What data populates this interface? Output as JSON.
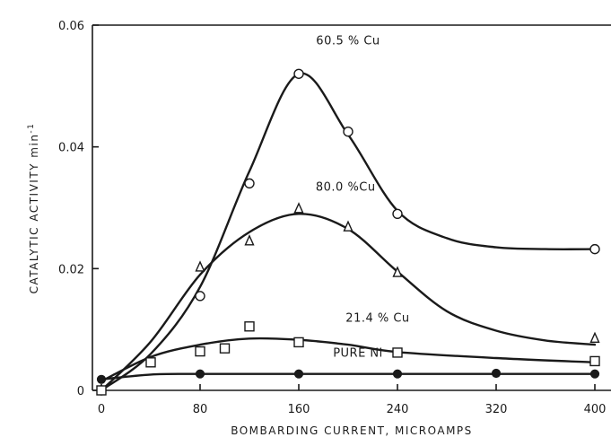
{
  "chart_data": {
    "type": "scatter",
    "xlabel": "BOMBARDING CURRENT, MICROAMPS",
    "ylabel": "CATALYTIC ACTIVITY min",
    "ylabel_sup": "-1",
    "xlim": [
      0,
      400
    ],
    "ylim": [
      0,
      0.06
    ],
    "x_ticks": [
      0,
      80,
      160,
      240,
      320,
      400
    ],
    "x_tick_labels": [
      "0",
      "80",
      "160",
      "240",
      "320",
      "400"
    ],
    "y_ticks": [
      0,
      0.02,
      0.04,
      0.06
    ],
    "y_tick_labels": [
      "0",
      "0.02",
      "0.04",
      "0.06"
    ],
    "grid": false,
    "series": [
      {
        "name": "60.5 % Cu",
        "marker": "circle",
        "points": [
          [
            0,
            0
          ],
          [
            80,
            0.0155
          ],
          [
            120,
            0.034
          ],
          [
            160,
            0.052
          ],
          [
            200,
            0.0425
          ],
          [
            240,
            0.029
          ],
          [
            400,
            0.0232
          ]
        ],
        "curve": [
          [
            0,
            0
          ],
          [
            40,
            0.006
          ],
          [
            80,
            0.017
          ],
          [
            120,
            0.036
          ],
          [
            160,
            0.052
          ],
          [
            200,
            0.042
          ],
          [
            240,
            0.0295
          ],
          [
            280,
            0.025
          ],
          [
            320,
            0.0235
          ],
          [
            360,
            0.0232
          ],
          [
            400,
            0.0232
          ]
        ]
      },
      {
        "name": "80.0 %Cu",
        "marker": "triangle",
        "points": [
          [
            0,
            0
          ],
          [
            80,
            0.0202
          ],
          [
            120,
            0.0245
          ],
          [
            160,
            0.0298
          ],
          [
            200,
            0.0268
          ],
          [
            240,
            0.0193
          ],
          [
            400,
            0.0085
          ]
        ],
        "curve": [
          [
            0,
            0
          ],
          [
            40,
            0.008
          ],
          [
            80,
            0.019
          ],
          [
            120,
            0.026
          ],
          [
            160,
            0.029
          ],
          [
            200,
            0.0265
          ],
          [
            240,
            0.0195
          ],
          [
            280,
            0.013
          ],
          [
            320,
            0.0098
          ],
          [
            360,
            0.0082
          ],
          [
            400,
            0.0075
          ]
        ]
      },
      {
        "name": "21.4 % Cu",
        "marker": "square",
        "points": [
          [
            0,
            0
          ],
          [
            40,
            0.0046
          ],
          [
            80,
            0.0064
          ],
          [
            100,
            0.0069
          ],
          [
            120,
            0.0105
          ],
          [
            160,
            0.0079
          ],
          [
            240,
            0.0062
          ],
          [
            400,
            0.0048
          ]
        ],
        "curve": [
          [
            0,
            0.0015
          ],
          [
            40,
            0.0055
          ],
          [
            80,
            0.0075
          ],
          [
            120,
            0.0085
          ],
          [
            160,
            0.0083
          ],
          [
            200,
            0.0075
          ],
          [
            240,
            0.0063
          ],
          [
            320,
            0.0053
          ],
          [
            400,
            0.0046
          ]
        ]
      },
      {
        "name": "PURE Ni",
        "marker": "filled-circle",
        "points": [
          [
            0,
            0.0018
          ],
          [
            80,
            0.0027
          ],
          [
            160,
            0.0027
          ],
          [
            240,
            0.0027
          ],
          [
            320,
            0.0028
          ],
          [
            400,
            0.0027
          ]
        ],
        "curve": [
          [
            0,
            0.0018
          ],
          [
            40,
            0.0026
          ],
          [
            80,
            0.0027
          ],
          [
            160,
            0.0027
          ],
          [
            240,
            0.0027
          ],
          [
            320,
            0.0027
          ],
          [
            400,
            0.0027
          ]
        ]
      }
    ]
  }
}
